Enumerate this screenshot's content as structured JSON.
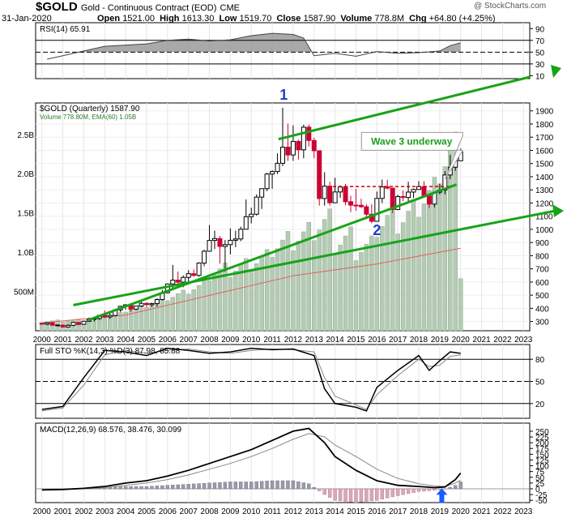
{
  "header": {
    "symbol": "$GOLD",
    "name": "Gold - Continuous Contract (EOD)",
    "exchange": "CME",
    "date": "31-Jan-2020",
    "quote": {
      "open_label": "Open",
      "open": "1521.00",
      "high_label": "High",
      "high": "1613.30",
      "low_label": "Low",
      "low": "1519.70",
      "close_label": "Close",
      "close": "1587.90",
      "volume_label": "Volume",
      "volume": "778.8M",
      "chg_label": "Chg",
      "chg": "+64.80 (+4.25%)"
    },
    "watermark": "@ StockCharts.com"
  },
  "colors": {
    "up": "#000000",
    "down": "#cc0033",
    "volume": "#b3ccb3",
    "volume_down": "#e0b0b8",
    "trend": "#17a317",
    "wave_text": "#1a3fcc",
    "annotation_green": "#1e9a1e",
    "resistance": "#cc0000",
    "arrow": "#1a5cff",
    "rsi_fill": "#8c8c8c"
  },
  "chart_data": [
    {
      "type": "line",
      "panel": "rsi",
      "title": "RSI(14) 65.91",
      "y_ticks": [
        "90",
        "70",
        "50",
        "30",
        "10"
      ],
      "ylim": [
        5,
        100
      ],
      "levels": [
        70,
        50,
        30
      ],
      "x": [
        2000.25,
        2001,
        2002,
        2003,
        2004,
        2005,
        2006,
        2007,
        2008,
        2009,
        2010,
        2011,
        2012,
        2012.5,
        2013,
        2013.5,
        2014,
        2015,
        2016,
        2017,
        2018,
        2019,
        2019.5,
        2020
      ],
      "values": [
        38,
        44,
        52,
        60,
        62,
        64,
        70,
        72,
        69,
        71,
        78,
        82,
        80,
        74,
        44,
        46,
        48,
        43,
        51,
        48,
        49,
        52,
        61,
        66
      ]
    },
    {
      "type": "candlestick",
      "panel": "price",
      "title": "$GOLD (Quarterly) 1587.90",
      "subtitle": "Volume 778.80M, EMA(60) 1.05B",
      "y_ticks": [
        "1900",
        "1800",
        "1700",
        "1600",
        "1500",
        "1400",
        "1300",
        "1200",
        "1100",
        "1000",
        "900",
        "800",
        "700",
        "600",
        "500",
        "400",
        "300"
      ],
      "ylim": [
        230,
        1960
      ],
      "vol_ticks": [
        "2.5B",
        "2.0B",
        "1.5B",
        "1.0B",
        "500M"
      ],
      "volume_lim": [
        0,
        2.9
      ],
      "x_ticks": [
        "2000",
        "2001",
        "2002",
        "2003",
        "2004",
        "2005",
        "2006",
        "2007",
        "2008",
        "2009",
        "2010",
        "2011",
        "2012",
        "2013",
        "2014",
        "2015",
        "2016",
        "2017",
        "2018",
        "2019",
        "2020",
        "2021",
        "2022",
        "2023"
      ],
      "xlim": [
        1999.7,
        2023.3
      ],
      "candles": [
        [
          2000.0,
          288,
          290,
          276,
          280
        ],
        [
          2000.25,
          280,
          294,
          272,
          291
        ],
        [
          2000.5,
          291,
          293,
          270,
          272
        ],
        [
          2000.75,
          272,
          276,
          263,
          274
        ],
        [
          2001.0,
          272,
          278,
          255,
          258
        ],
        [
          2001.25,
          258,
          280,
          255,
          271
        ],
        [
          2001.5,
          271,
          294,
          265,
          294
        ],
        [
          2001.75,
          293,
          295,
          272,
          278
        ],
        [
          2002.0,
          279,
          305,
          277,
          302
        ],
        [
          2002.25,
          302,
          330,
          298,
          318
        ],
        [
          2002.5,
          318,
          327,
          300,
          323
        ],
        [
          2002.75,
          323,
          350,
          312,
          347
        ],
        [
          2003.0,
          347,
          384,
          325,
          335
        ],
        [
          2003.25,
          335,
          370,
          320,
          346
        ],
        [
          2003.5,
          346,
          390,
          340,
          388
        ],
        [
          2003.75,
          388,
          417,
          370,
          416
        ],
        [
          2004.0,
          416,
          430,
          390,
          427
        ],
        [
          2004.25,
          427,
          430,
          372,
          394
        ],
        [
          2004.5,
          394,
          420,
          388,
          418
        ],
        [
          2004.75,
          418,
          456,
          410,
          438
        ],
        [
          2005.0,
          438,
          447,
          410,
          428
        ],
        [
          2005.25,
          428,
          443,
          412,
          437
        ],
        [
          2005.5,
          437,
          476,
          415,
          467
        ],
        [
          2005.75,
          467,
          540,
          460,
          518
        ],
        [
          2006.0,
          518,
          590,
          516,
          585
        ],
        [
          2006.25,
          585,
          730,
          543,
          614
        ],
        [
          2006.5,
          614,
          680,
          560,
          599
        ],
        [
          2006.75,
          599,
          650,
          560,
          635
        ],
        [
          2007.0,
          635,
          690,
          602,
          663
        ],
        [
          2007.25,
          663,
          695,
          640,
          650
        ],
        [
          2007.5,
          650,
          750,
          640,
          744
        ],
        [
          2007.75,
          744,
          845,
          720,
          834
        ],
        [
          2008.0,
          834,
          1033,
          832,
          916
        ],
        [
          2008.25,
          916,
          990,
          850,
          930
        ],
        [
          2008.5,
          930,
          950,
          740,
          870
        ],
        [
          2008.75,
          870,
          920,
          680,
          884
        ],
        [
          2009.0,
          884,
          1007,
          810,
          917
        ],
        [
          2009.25,
          917,
          990,
          865,
          927
        ],
        [
          2009.5,
          927,
          1020,
          910,
          1001
        ],
        [
          2009.75,
          1001,
          1227,
          1000,
          1096
        ],
        [
          2010.0,
          1096,
          1165,
          1045,
          1115
        ],
        [
          2010.25,
          1115,
          1265,
          1105,
          1245
        ],
        [
          2010.5,
          1245,
          1310,
          1155,
          1309
        ],
        [
          2010.75,
          1309,
          1430,
          1290,
          1420
        ],
        [
          2011.0,
          1420,
          1448,
          1308,
          1439
        ],
        [
          2011.25,
          1439,
          1577,
          1420,
          1502
        ],
        [
          2011.5,
          1502,
          1923,
          1480,
          1624
        ],
        [
          2011.75,
          1624,
          1803,
          1520,
          1565
        ],
        [
          2012.0,
          1565,
          1790,
          1520,
          1668
        ],
        [
          2012.25,
          1668,
          1680,
          1530,
          1604
        ],
        [
          2012.5,
          1604,
          1795,
          1540,
          1776
        ],
        [
          2012.75,
          1776,
          1796,
          1630,
          1675
        ],
        [
          2013.0,
          1675,
          1695,
          1540,
          1597
        ],
        [
          2013.25,
          1597,
          1600,
          1180,
          1234
        ],
        [
          2013.5,
          1234,
          1434,
          1180,
          1328
        ],
        [
          2013.75,
          1328,
          1362,
          1180,
          1202
        ],
        [
          2014.0,
          1202,
          1392,
          1200,
          1284
        ],
        [
          2014.25,
          1284,
          1332,
          1240,
          1322
        ],
        [
          2014.5,
          1322,
          1345,
          1183,
          1210
        ],
        [
          2014.75,
          1210,
          1255,
          1131,
          1184
        ],
        [
          2015.0,
          1184,
          1307,
          1142,
          1183
        ],
        [
          2015.25,
          1183,
          1232,
          1162,
          1172
        ],
        [
          2015.5,
          1172,
          1192,
          1077,
          1115
        ],
        [
          2015.75,
          1115,
          1191,
          1046,
          1061
        ],
        [
          2016.0,
          1061,
          1287,
          1061,
          1235
        ],
        [
          2016.25,
          1235,
          1378,
          1200,
          1322
        ],
        [
          2016.5,
          1322,
          1377,
          1304,
          1313
        ],
        [
          2016.75,
          1313,
          1313,
          1123,
          1151
        ],
        [
          2017.0,
          1151,
          1264,
          1146,
          1249
        ],
        [
          2017.25,
          1249,
          1296,
          1215,
          1242
        ],
        [
          2017.5,
          1242,
          1362,
          1205,
          1283
        ],
        [
          2017.75,
          1283,
          1310,
          1238,
          1303
        ],
        [
          2018.0,
          1303,
          1366,
          1302,
          1325
        ],
        [
          2018.25,
          1325,
          1366,
          1250,
          1253
        ],
        [
          2018.5,
          1253,
          1264,
          1160,
          1192
        ],
        [
          2018.75,
          1192,
          1287,
          1167,
          1282
        ],
        [
          2019.0,
          1282,
          1346,
          1266,
          1298
        ],
        [
          2019.25,
          1298,
          1442,
          1266,
          1413
        ],
        [
          2019.5,
          1413,
          1566,
          1382,
          1472
        ],
        [
          2019.75,
          1472,
          1560,
          1445,
          1523
        ],
        [
          2020.0,
          1521,
          1613,
          1520,
          1588
        ]
      ],
      "volume_years": [
        2000,
        2001,
        2002,
        2003,
        2004,
        2005,
        2006,
        2007,
        2008,
        2009,
        2010,
        2011,
        2012,
        2013,
        2014,
        2015,
        2016,
        2017,
        2018,
        2019,
        2020
      ],
      "volume_values": [
        0.12,
        0.13,
        0.15,
        0.2,
        0.28,
        0.35,
        0.45,
        0.55,
        0.75,
        0.8,
        0.9,
        1.1,
        1.2,
        1.35,
        1.15,
        1.05,
        1.4,
        1.45,
        1.7,
        2.2,
        0.78
      ],
      "volume_ema_x": [
        2000,
        2004,
        2008,
        2012,
        2016,
        2018,
        2020
      ],
      "volume_ema": [
        0.1,
        0.2,
        0.45,
        0.7,
        0.85,
        0.95,
        1.05
      ],
      "resistance_y": 1325,
      "trend_upper": {
        "from": [
          2011.3,
          1685
        ],
        "to": [
          2023.3,
          2350
        ]
      },
      "trend_lower": {
        "from": [
          2001.5,
          240
        ],
        "to": [
          2023.3,
          1140
        ]
      },
      "support_mid": {
        "from": [
          2002.2,
          310
        ],
        "to": [
          2019.8,
          1340
        ]
      },
      "annotations": [
        {
          "text": "1",
          "x": 2011.55,
          "y": 1985
        },
        {
          "text": "2",
          "x": 2016.0,
          "y": 955
        },
        {
          "text": "Wave 3 underway",
          "x": 2017.7,
          "y": 1650
        }
      ]
    },
    {
      "type": "line",
      "panel": "stochastic",
      "title": "Full STO %K(14,3) %D(3) 87.98, 85.88",
      "y_ticks": [
        "80",
        "50",
        "20"
      ],
      "ylim": [
        0,
        100
      ],
      "levels": [
        80,
        50,
        20
      ],
      "x": [
        2000,
        2001,
        2002,
        2003,
        2004,
        2005,
        2006,
        2007,
        2008,
        2009,
        2010,
        2011,
        2012,
        2013,
        2013.5,
        2014,
        2015,
        2015.5,
        2016,
        2017,
        2018,
        2018.5,
        2019,
        2019.5,
        2020
      ],
      "k": [
        12,
        16,
        55,
        92,
        90,
        85,
        95,
        92,
        88,
        90,
        95,
        93,
        94,
        85,
        40,
        20,
        15,
        10,
        42,
        65,
        85,
        65,
        78,
        90,
        88
      ],
      "d": [
        10,
        14,
        45,
        86,
        92,
        88,
        92,
        94,
        90,
        88,
        92,
        94,
        93,
        90,
        55,
        30,
        18,
        12,
        32,
        58,
        80,
        70,
        72,
        84,
        86
      ]
    },
    {
      "type": "line",
      "panel": "macd",
      "title": "MACD(12,26,9) 68.576, 38.476, 30.099",
      "y_ticks": [
        "250",
        "225",
        "200",
        "175",
        "150",
        "125",
        "100",
        "75",
        "50",
        "25",
        "0",
        "-25",
        "-50"
      ],
      "ylim": [
        -60,
        285
      ],
      "x": [
        2000,
        2001,
        2002,
        2003,
        2004,
        2005,
        2006,
        2007,
        2008,
        2009,
        2010,
        2011,
        2012,
        2012.75,
        2013.5,
        2014,
        2015,
        2016,
        2017,
        2018,
        2018.75,
        2019.25,
        2019.75,
        2020
      ],
      "macd": [
        -5,
        -3,
        2,
        10,
        25,
        35,
        55,
        80,
        110,
        140,
        170,
        210,
        250,
        262,
        200,
        140,
        80,
        35,
        15,
        10,
        5,
        8,
        40,
        68
      ],
      "signal": [
        -4,
        -3,
        0,
        5,
        15,
        25,
        40,
        60,
        85,
        110,
        140,
        175,
        215,
        240,
        225,
        190,
        140,
        85,
        45,
        22,
        12,
        10,
        25,
        38
      ],
      "hist": [
        -1,
        0,
        2,
        5,
        10,
        10,
        15,
        20,
        25,
        30,
        30,
        35,
        35,
        22,
        -25,
        -50,
        -60,
        -50,
        -30,
        -12,
        -7,
        -2,
        15,
        30
      ],
      "arrow_x": 2019.1
    }
  ]
}
